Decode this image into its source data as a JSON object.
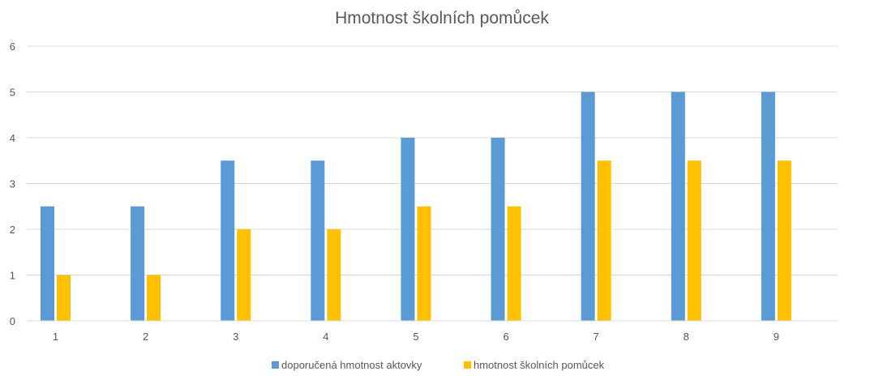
{
  "chart_data": {
    "type": "bar",
    "title": "Hmotnost školních pomůcek",
    "categories": [
      "1",
      "2",
      "3",
      "4",
      "5",
      "6",
      "7",
      "8",
      "9"
    ],
    "series": [
      {
        "name": "doporučená hmotnost aktovky",
        "color": "#5B9BD5",
        "values": [
          2.5,
          2.5,
          3.5,
          3.5,
          4,
          4,
          5,
          5,
          5
        ]
      },
      {
        "name": "hmotnost školních pomůcek",
        "color": "#FFC000",
        "values": [
          1,
          1,
          2,
          2,
          2.5,
          2.5,
          3.5,
          3.5,
          3.5
        ]
      }
    ],
    "y_ticks": [
      "0",
      "1",
      "2",
      "3",
      "4",
      "5",
      "6"
    ],
    "ylim": [
      0,
      6
    ],
    "grid": true,
    "legend_position": "bottom"
  }
}
